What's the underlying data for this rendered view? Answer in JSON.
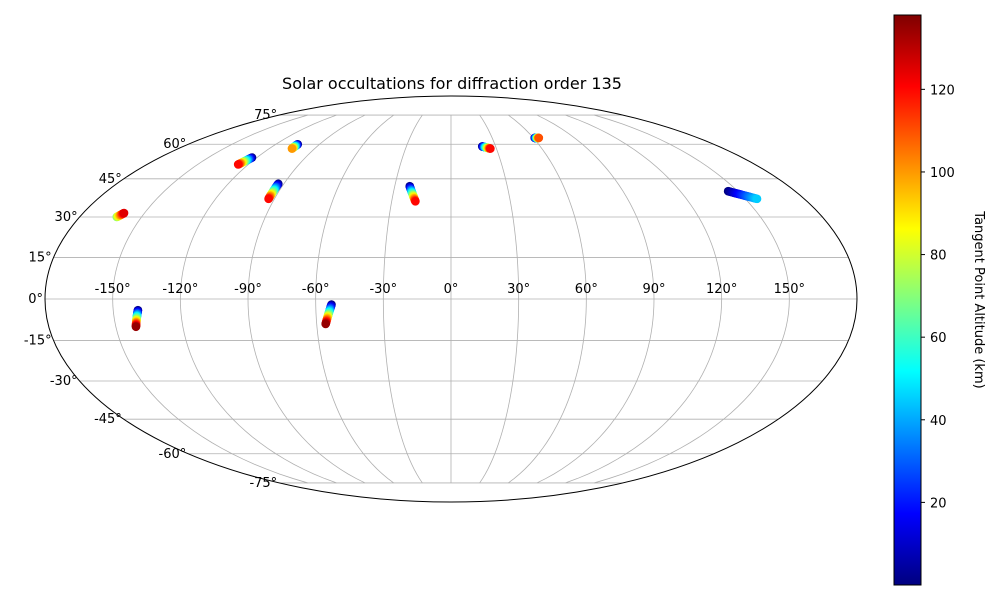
{
  "chart_data": {
    "type": "scatter",
    "projection": "mollweide",
    "title": "Solar occultations for diffraction order 135",
    "grid": true,
    "x_ticks": [
      -150,
      -120,
      -90,
      -60,
      -30,
      0,
      30,
      60,
      90,
      120,
      150
    ],
    "x_tick_labels": [
      "-150°",
      "-120°",
      "-90°",
      "-60°",
      "-30°",
      "0°",
      "30°",
      "60°",
      "90°",
      "120°",
      "150°"
    ],
    "y_ticks": [
      -75,
      -60,
      -45,
      -30,
      -15,
      0,
      15,
      30,
      45,
      60,
      75
    ],
    "y_tick_labels": [
      "-75°",
      "-60°",
      "-45°",
      "-30°",
      "-15°",
      "0°",
      "15°",
      "30°",
      "45°",
      "60°",
      "75°"
    ],
    "colorbar": {
      "label": "Tangent Point Altitude (km)",
      "min": 0,
      "max": 138,
      "ticks": [
        20,
        40,
        60,
        80,
        100,
        120
      ],
      "colormap": "jet"
    },
    "series": [
      {
        "start_lon": -162,
        "start_lat": 30,
        "end_lon": -160,
        "end_lat": 31.5,
        "min_alt": 70,
        "max_alt": 125
      },
      {
        "start_lon": -123,
        "start_lat": 54,
        "end_lon": -126,
        "end_lat": 51,
        "min_alt": 0,
        "max_alt": 120
      },
      {
        "start_lon": -105,
        "start_lat": 60,
        "end_lon": -105,
        "end_lat": 58,
        "min_alt": 0,
        "max_alt": 100
      },
      {
        "start_lon": -93,
        "start_lat": 43,
        "end_lon": -93,
        "end_lat": 37,
        "min_alt": 0,
        "max_alt": 120
      },
      {
        "start_lon": -22,
        "start_lat": 42,
        "end_lon": -18,
        "end_lat": 36,
        "min_alt": 0,
        "max_alt": 120
      },
      {
        "start_lon": 21,
        "start_lat": 59,
        "end_lon": 26,
        "end_lat": 58,
        "min_alt": 0,
        "max_alt": 120
      },
      {
        "start_lon": 61,
        "start_lat": 63,
        "end_lon": 64,
        "end_lat": 63,
        "min_alt": 0,
        "max_alt": 110
      },
      {
        "start_lon": 145,
        "start_lat": 40,
        "end_lon": 156,
        "end_lat": 37,
        "min_alt": 0,
        "max_alt": 45
      },
      {
        "start_lon": -139,
        "start_lat": -4,
        "end_lon": -141,
        "end_lat": -10,
        "min_alt": 0,
        "max_alt": 135
      },
      {
        "start_lon": -53,
        "start_lat": -2,
        "end_lon": -56,
        "end_lat": -9,
        "min_alt": 0,
        "max_alt": 135
      }
    ]
  }
}
